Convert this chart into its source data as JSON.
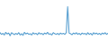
{
  "values": [
    -0.3,
    -0.8,
    -0.5,
    -1.0,
    -0.2,
    -0.7,
    -0.4,
    -1.2,
    -0.3,
    -0.6,
    -0.9,
    -0.5,
    -0.8,
    -0.3,
    -1.0,
    -0.6,
    -1.1,
    -0.2,
    -0.7,
    -0.4,
    -0.8,
    -0.6,
    -1.0,
    -0.3,
    -0.7,
    -0.5,
    -0.9,
    -0.3,
    -0.7,
    -0.5,
    -0.9,
    -0.4,
    -0.7,
    -0.2,
    -0.8,
    -0.6,
    -1.0,
    -0.3,
    -0.6,
    -0.8,
    -0.5,
    -0.9,
    -0.4,
    -0.7,
    -0.5,
    -0.8,
    -0.3,
    7.5,
    -0.4,
    -0.6,
    -0.9,
    -0.4,
    -0.7,
    -0.3,
    -0.8,
    -0.5,
    -0.9,
    -0.4,
    -0.7,
    -0.5,
    -0.9,
    -0.3,
    -0.8,
    -0.5,
    -1.0,
    -0.3,
    -0.7,
    -0.4,
    -0.8,
    -0.5,
    -0.9,
    -0.4,
    -0.7,
    -0.3,
    -0.8,
    -0.5
  ],
  "line_color": "#3a8ec8",
  "background_color": "#ffffff",
  "ylim_min": -2.5,
  "ylim_max": 9.5,
  "linewidth": 0.7
}
